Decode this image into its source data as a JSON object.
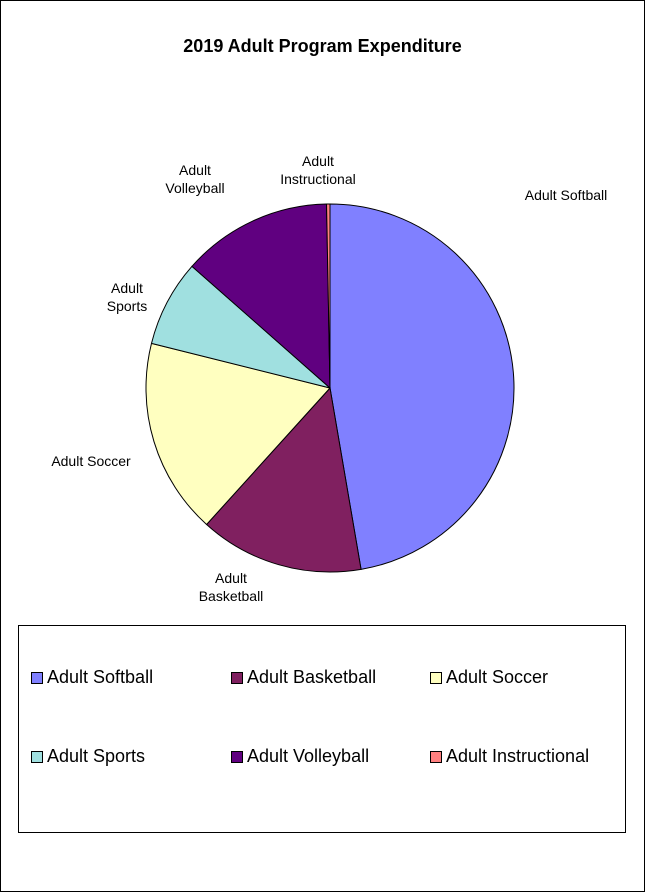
{
  "chart_data": {
    "type": "pie",
    "title": "2019 Adult Program Expenditure",
    "legend_position": "bottom",
    "slices": [
      {
        "label": "Adult Softball",
        "display_label": [
          "Adult Softball"
        ],
        "value": 47.3,
        "color": "#8080FF"
      },
      {
        "label": "Adult Basketball",
        "display_label": [
          "Adult",
          "Basketball"
        ],
        "value": 14.4,
        "color": "#802060"
      },
      {
        "label": "Adult Soccer",
        "display_label": [
          "Adult Soccer"
        ],
        "value": 17.2,
        "color": "#FFFFC0"
      },
      {
        "label": "Adult Sports",
        "display_label": [
          "Adult",
          "Sports"
        ],
        "value": 7.6,
        "color": "#A0E0E0"
      },
      {
        "label": "Adult Volleyball",
        "display_label": [
          "Adult",
          "Volleyball"
        ],
        "value": 13.2,
        "color": "#600080"
      },
      {
        "label": "Adult Instructional",
        "display_label": [
          "Adult",
          "Instructional"
        ],
        "value": 0.3,
        "color": "#FF8080"
      }
    ]
  }
}
